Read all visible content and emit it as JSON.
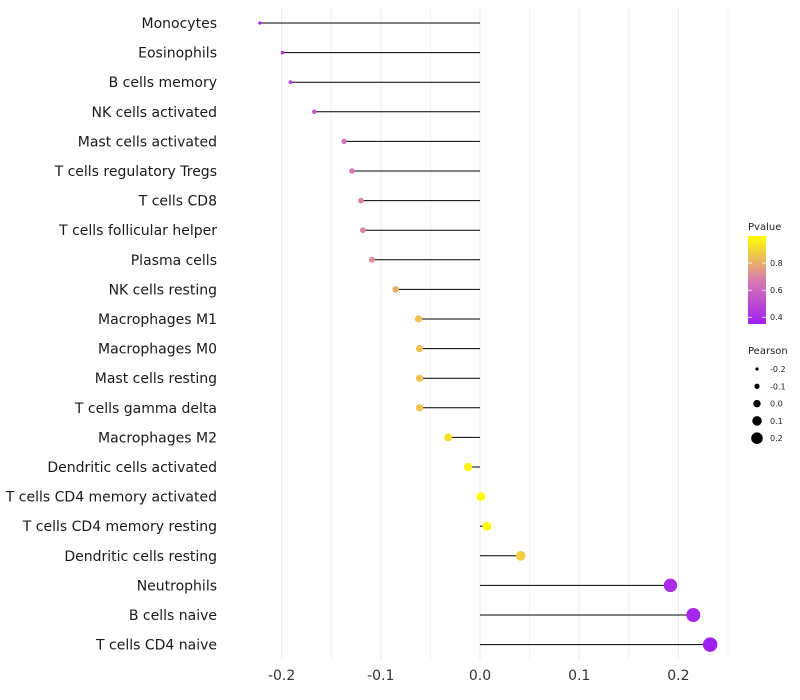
{
  "chart_data": {
    "type": "scatter",
    "subtype": "lollipop",
    "title": "",
    "xlabel": "",
    "ylabel": "",
    "xlim": [
      -0.25,
      0.25
    ],
    "x_ticks": [
      -0.2,
      -0.1,
      0.0,
      0.1,
      0.2
    ],
    "x_tick_labels": [
      "-0.2",
      "-0.1",
      "0.0",
      "0.1",
      "0.2"
    ],
    "grid": true,
    "categories": [
      "Monocytes",
      "Eosinophils",
      "B cells memory",
      "NK cells activated",
      "Mast cells activated",
      "T cells regulatory  Tregs ",
      "T cells CD8",
      "T cells follicular helper",
      "Plasma cells",
      "NK cells resting",
      "Macrophages M1",
      "Macrophages M0",
      "Mast cells resting",
      "T cells gamma delta",
      "Macrophages M2",
      "Dendritic cells activated",
      "T cells CD4 memory activated",
      "T cells CD4 memory resting",
      "Dendritic cells resting",
      "Neutrophils",
      "B cells naive",
      "T cells CD4 naive"
    ],
    "pearson": [
      -0.222,
      -0.199,
      -0.191,
      -0.167,
      -0.137,
      -0.129,
      -0.12,
      -0.118,
      -0.109,
      -0.085,
      -0.062,
      -0.061,
      -0.061,
      -0.061,
      -0.032,
      -0.012,
      0.001,
      0.007,
      0.041,
      0.192,
      0.215,
      0.232
    ],
    "pvalue": [
      0.37,
      0.46,
      0.48,
      0.55,
      0.63,
      0.66,
      0.69,
      0.7,
      0.72,
      0.8,
      0.85,
      0.85,
      0.85,
      0.85,
      0.92,
      0.97,
      1.0,
      0.99,
      0.88,
      0.4,
      0.38,
      0.35
    ],
    "legend": {
      "position": "right",
      "color": {
        "title": "Pvalue",
        "ticks": [
          "0.4",
          "0.6",
          "0.8"
        ],
        "tick_values": [
          0.4,
          0.6,
          0.8
        ],
        "range": [
          0.35,
          1.0
        ],
        "low_color": "#a020f0",
        "mid_color": "#d97bb0",
        "high_color": "#ffff00"
      },
      "size": {
        "title": "Pearson",
        "ticks": [
          "-0.2",
          "-0.1",
          "0.0",
          "0.1",
          "0.2"
        ],
        "tick_values": [
          -0.2,
          -0.1,
          0.0,
          0.1,
          0.2
        ]
      }
    }
  }
}
